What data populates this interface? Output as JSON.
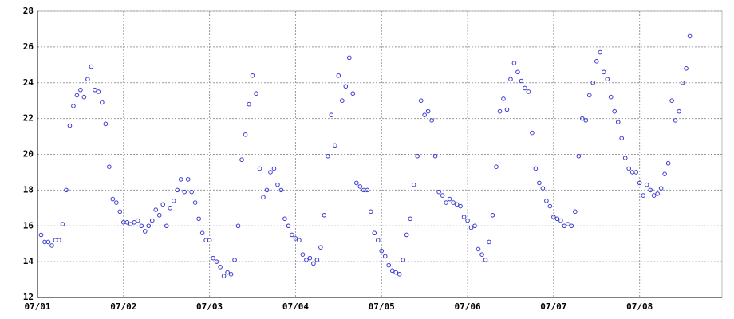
{
  "chart_data": {
    "type": "scatter",
    "x": [
      1,
      2,
      3,
      4,
      5,
      6,
      7,
      8,
      9,
      10,
      11,
      12,
      13,
      14,
      15,
      16,
      17,
      18,
      19,
      20,
      21,
      22,
      23,
      24,
      25,
      26,
      27,
      28,
      29,
      30,
      31,
      32,
      33,
      34,
      35,
      36,
      37,
      38,
      39,
      40,
      41,
      42,
      43,
      44,
      45,
      46,
      47,
      48,
      49,
      50,
      51,
      52,
      53,
      54,
      55,
      56,
      57,
      58,
      59,
      60,
      61,
      62,
      63,
      64,
      65,
      66,
      67,
      68,
      69,
      70,
      71,
      72,
      73,
      74,
      75,
      76,
      77,
      78,
      79,
      80,
      81,
      82,
      83,
      84,
      85,
      86,
      87,
      88,
      89,
      90,
      91,
      92,
      93,
      94,
      95,
      96,
      97,
      98,
      99,
      100,
      101,
      102,
      103,
      104,
      105,
      106,
      107,
      108,
      109,
      110,
      111,
      112,
      113,
      114,
      115,
      116,
      117,
      118,
      119,
      120,
      121,
      122,
      123,
      124,
      125,
      126,
      127,
      128,
      129,
      130,
      131,
      132,
      133,
      134,
      135,
      136,
      137,
      138,
      139,
      140,
      141,
      142,
      143,
      144,
      145,
      146,
      147,
      148,
      149,
      150,
      151,
      152,
      153,
      154,
      155,
      156,
      157,
      158,
      159,
      160,
      161,
      162,
      163,
      164,
      165,
      166,
      167,
      168,
      169,
      170,
      171,
      172,
      173,
      174,
      175,
      176,
      177,
      178,
      179,
      180,
      181,
      182
    ],
    "values": [
      15.5,
      15.1,
      15.1,
      14.9,
      15.2,
      15.2,
      16.1,
      18.0,
      21.6,
      22.7,
      23.3,
      23.6,
      23.2,
      24.2,
      24.9,
      23.6,
      23.5,
      22.9,
      21.7,
      19.3,
      17.5,
      17.3,
      16.8,
      16.2,
      16.2,
      16.1,
      16.2,
      16.3,
      16.0,
      15.7,
      16.0,
      16.3,
      16.9,
      16.6,
      17.2,
      16.0,
      17.0,
      17.4,
      18.0,
      18.6,
      17.9,
      18.6,
      17.9,
      17.3,
      16.4,
      15.6,
      15.2,
      15.2,
      14.2,
      14.0,
      13.7,
      13.2,
      13.4,
      13.3,
      14.1,
      16.0,
      19.7,
      21.1,
      22.8,
      24.4,
      23.4,
      19.2,
      17.6,
      18.0,
      19.0,
      19.2,
      18.3,
      18.0,
      16.4,
      16.0,
      15.5,
      15.3,
      15.2,
      14.4,
      14.1,
      14.2,
      13.9,
      14.1,
      14.8,
      16.6,
      19.9,
      22.2,
      20.5,
      24.4,
      23.0,
      23.8,
      25.4,
      23.4,
      18.4,
      18.2,
      18.0,
      18.0,
      16.8,
      15.6,
      15.2,
      14.6,
      14.3,
      13.8,
      13.5,
      13.4,
      13.3,
      14.1,
      15.5,
      16.4,
      18.3,
      19.9,
      23.0,
      22.2,
      22.4,
      21.9,
      19.9,
      17.9,
      17.7,
      17.3,
      17.5,
      17.3,
      17.2,
      17.1,
      16.5,
      16.3,
      15.9,
      16.0,
      14.7,
      14.4,
      14.1,
      15.1,
      16.6,
      19.3,
      22.4,
      23.1,
      22.5,
      24.2,
      25.1,
      24.6,
      24.1,
      23.7,
      23.5,
      21.2,
      19.2,
      18.4,
      18.1,
      17.4,
      17.1,
      16.5,
      16.4,
      16.3,
      16.0,
      16.1,
      16.0,
      16.8,
      19.9,
      22.0,
      21.9,
      23.3,
      24.0,
      25.2,
      25.7,
      24.6,
      24.2,
      23.2,
      22.4,
      21.8,
      20.9,
      19.8,
      19.2,
      19.0,
      19.0,
      18.4,
      17.7,
      18.3,
      18.0,
      17.7,
      17.8,
      18.1,
      18.9,
      19.5,
      23.0,
      21.9,
      22.4,
      24.0,
      24.8,
      26.6
    ],
    "color": "#3a3ad0",
    "xlim": [
      0,
      191
    ],
    "xticks": [
      {
        "value": 0,
        "label": "07/01"
      },
      {
        "value": 24,
        "label": "07/02"
      },
      {
        "value": 48,
        "label": "07/03"
      },
      {
        "value": 72,
        "label": "07/04"
      },
      {
        "value": 96,
        "label": "07/05"
      },
      {
        "value": 120,
        "label": "07/06"
      },
      {
        "value": 144,
        "label": "07/07"
      },
      {
        "value": 168,
        "label": "07/08"
      }
    ],
    "ylim": [
      12,
      28
    ],
    "yticks": [
      12,
      14,
      16,
      18,
      20,
      22,
      24,
      26,
      28
    ],
    "grid": true
  }
}
